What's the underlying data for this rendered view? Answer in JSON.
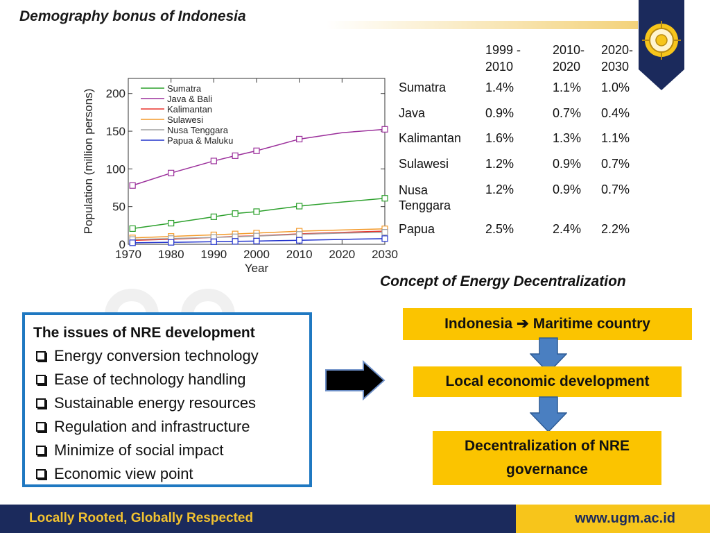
{
  "title": "Demography bonus of  Indonesia",
  "chart_data": {
    "type": "line",
    "xlabel": "Year",
    "ylabel": "Population (million persons)",
    "xlim": [
      1970,
      2030
    ],
    "ylim": [
      0,
      220
    ],
    "xticks": [
      1970,
      1980,
      1990,
      2000,
      2010,
      2020,
      2030
    ],
    "yticks": [
      0,
      50,
      100,
      150,
      200
    ],
    "legend_position": "top-left",
    "grid": false,
    "x": [
      1971,
      1980,
      1990,
      1995,
      2000,
      2010,
      2020,
      2030
    ],
    "series": [
      {
        "name": "Sumatra",
        "color": "#2ca02c",
        "values": [
          20.8,
          28.0,
          36.5,
          40.8,
          43.3,
          50.6,
          56.0,
          61.0
        ]
      },
      {
        "name": "Java & Bali",
        "color": "#9b2f9b",
        "values": [
          78.0,
          94.5,
          110.5,
          117.5,
          124.0,
          139.5,
          148.0,
          152.5
        ]
      },
      {
        "name": "Kalimantan",
        "color": "#e8322b",
        "values": [
          5.2,
          6.7,
          9.1,
          10.5,
          11.3,
          13.8,
          15.8,
          17.5
        ]
      },
      {
        "name": "Sulawesi",
        "color": "#f39a2a",
        "values": [
          8.5,
          10.4,
          12.5,
          13.7,
          14.9,
          17.4,
          19.0,
          20.5
        ]
      },
      {
        "name": "Nusa Tenggara",
        "color": "#a0a0a0",
        "values": [
          6.3,
          7.6,
          9.1,
          9.9,
          10.9,
          13.1,
          14.8,
          16.0
        ]
      },
      {
        "name": "Papua & Maluku",
        "color": "#2233cc",
        "values": [
          2.0,
          2.6,
          3.4,
          3.9,
          4.3,
          5.3,
          6.5,
          7.5
        ]
      }
    ]
  },
  "growth_table": {
    "headers": [
      [
        "1999 -",
        "2010"
      ],
      [
        "2010-",
        "2020"
      ],
      [
        "2020-",
        "2030"
      ]
    ],
    "rows": [
      {
        "region": "Sumatra",
        "v": [
          "1.4%",
          "1.1%",
          "1.0%"
        ]
      },
      {
        "region": "Java",
        "v": [
          "0.9%",
          "0.7%",
          "0.4%"
        ]
      },
      {
        "region": "Kalimantan",
        "v": [
          "1.6%",
          "1.3%",
          "1.1%"
        ]
      },
      {
        "region": "Sulawesi",
        "v": [
          "1.2%",
          "0.9%",
          "0.7%"
        ]
      },
      {
        "region_l1": "Nusa",
        "region_l2": "Tenggara",
        "v": [
          "1.2%",
          "0.9%",
          "0.7%"
        ]
      },
      {
        "region": "Papua",
        "v": [
          "2.5%",
          "2.4%",
          "2.2%"
        ]
      }
    ]
  },
  "concept": {
    "title": "Concept of Energy Decentralization",
    "box1_left": "Indonesia ",
    "box1_arrow": "➔",
    "box1_right": " Maritime country",
    "box2": "Local economic development",
    "box3_line1": "Decentralization of NRE",
    "box3_line2": "governance",
    "box_color": "#fbc400",
    "arrow_color": "#4a7fc1"
  },
  "issues": {
    "title": "The issues of NRE development",
    "items": [
      "Energy conversion technology",
      "Ease of technology handling",
      "Sustainable energy resources",
      "Regulation and infrastructure",
      "Minimize of social impact",
      "Economic view point"
    ],
    "border_color": "#1f78c1"
  },
  "footer": {
    "slogan": "Locally Rooted, Globally Respected",
    "url": "www.ugm.ac.id"
  }
}
